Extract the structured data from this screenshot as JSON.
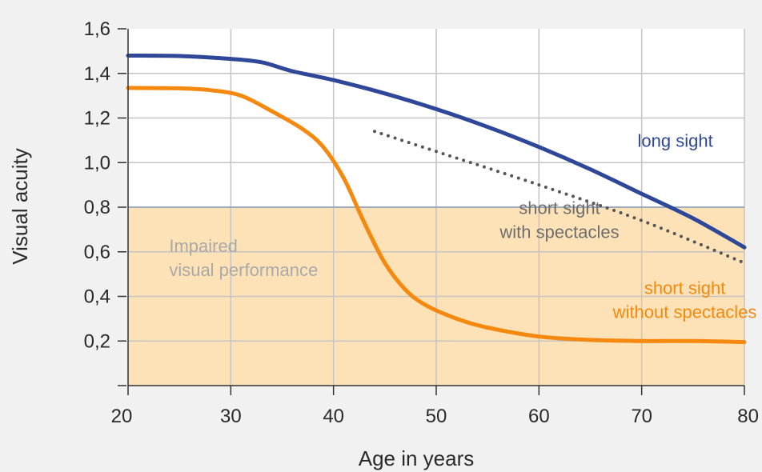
{
  "chart_data": {
    "type": "line",
    "title": "",
    "xlabel": "Age in years",
    "ylabel": "Visual acuity",
    "xlim": [
      20,
      80
    ],
    "ylim": [
      0,
      1.6
    ],
    "xticks": [
      20,
      30,
      40,
      50,
      60,
      70,
      80
    ],
    "xtick_labels": [
      "20",
      "30",
      "40",
      "50",
      "60",
      "70",
      "80"
    ],
    "yticks": [
      0.2,
      0.4,
      0.6,
      0.8,
      1.0,
      1.2,
      1.4,
      1.6
    ],
    "ytick_labels": [
      "0,2",
      "0,4",
      "0,6",
      "0,8",
      "1,0",
      "1,2",
      "1,4",
      "1,6"
    ],
    "grid": true,
    "shaded_region": {
      "label_lines": [
        "Impaired",
        "visual performance"
      ],
      "y_range": [
        0,
        0.8
      ],
      "color": "#fde2b7"
    },
    "series": [
      {
        "name": "long sight",
        "color": "#2e4799",
        "style": "solid",
        "points": [
          [
            20,
            1.48
          ],
          [
            25,
            1.478
          ],
          [
            30,
            1.465
          ],
          [
            33,
            1.45
          ],
          [
            36,
            1.41
          ],
          [
            40,
            1.37
          ],
          [
            45,
            1.31
          ],
          [
            50,
            1.24
          ],
          [
            55,
            1.16
          ],
          [
            60,
            1.07
          ],
          [
            65,
            0.97
          ],
          [
            70,
            0.86
          ],
          [
            75,
            0.75
          ],
          [
            80,
            0.62
          ]
        ]
      },
      {
        "name": "short sight without spectacles",
        "label_lines": [
          "short sight",
          "without spectacles"
        ],
        "color": "#f5890f",
        "style": "solid",
        "points": [
          [
            20,
            1.335
          ],
          [
            25,
            1.333
          ],
          [
            28,
            1.325
          ],
          [
            31,
            1.3
          ],
          [
            34,
            1.23
          ],
          [
            37,
            1.15
          ],
          [
            39,
            1.07
          ],
          [
            41,
            0.93
          ],
          [
            43,
            0.73
          ],
          [
            45,
            0.55
          ],
          [
            47,
            0.43
          ],
          [
            49,
            0.36
          ],
          [
            52,
            0.3
          ],
          [
            55,
            0.26
          ],
          [
            60,
            0.22
          ],
          [
            65,
            0.205
          ],
          [
            70,
            0.2
          ],
          [
            75,
            0.2
          ],
          [
            80,
            0.195
          ]
        ]
      },
      {
        "name": "short sight with spectacles",
        "label_lines": [
          "short sight",
          "with spectacles"
        ],
        "color": "#555555",
        "style": "dotted",
        "points": [
          [
            44,
            1.14
          ],
          [
            50,
            1.05
          ],
          [
            60,
            0.9
          ],
          [
            70,
            0.74
          ],
          [
            80,
            0.55
          ]
        ]
      }
    ],
    "annotations": [
      {
        "lines": [
          "long sight"
        ],
        "color": "#2e4799",
        "x": 69.6,
        "y": 1.07,
        "anchor": "start"
      },
      {
        "lines": [
          "short sight",
          "with spectacles"
        ],
        "color": "#6e6e6e",
        "x": 62,
        "y": 0.77,
        "anchor": "middle"
      },
      {
        "lines": [
          "short sight",
          "without spectacles"
        ],
        "color": "#f5890f",
        "x": 74.2,
        "y": 0.41,
        "anchor": "middle"
      },
      {
        "lines": [
          "Impaired",
          "visual performance"
        ],
        "color": "#a9a9a9",
        "x": 24,
        "y": 0.6,
        "anchor": "start"
      }
    ]
  }
}
